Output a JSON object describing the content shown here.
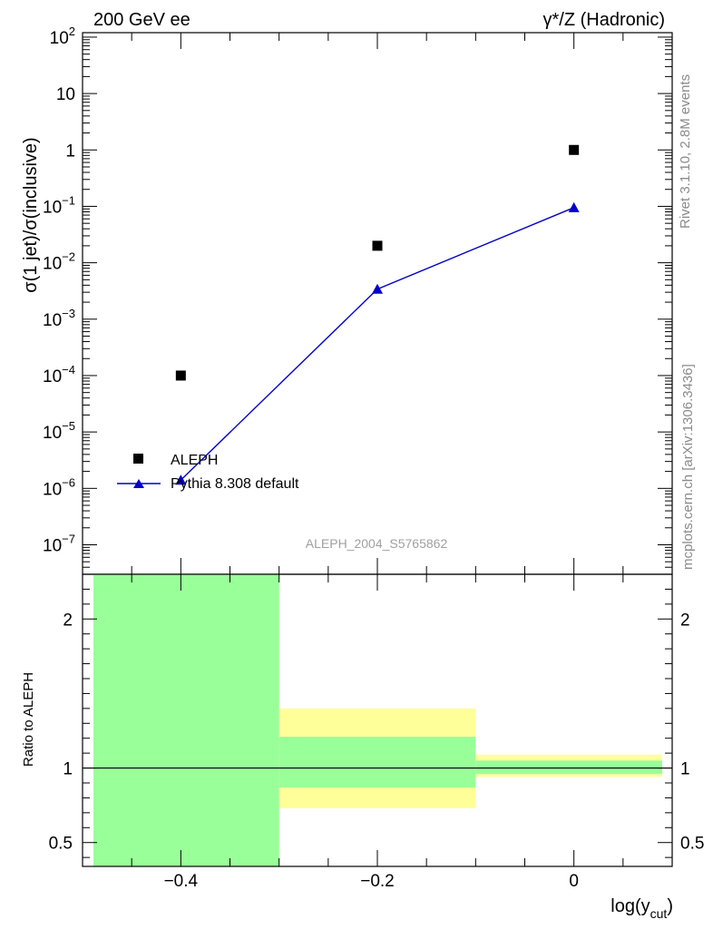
{
  "header": {
    "left": "200 GeV ee",
    "right": "γ*/Z (Hadronic)"
  },
  "side_text": {
    "rivet": "Rivet 3.1.10,  2.8M events",
    "mcplots": "mcplots.cern.ch [arXiv:1306.3436]"
  },
  "watermark": "ALEPH_2004_S5765862",
  "colors": {
    "data": "#000000",
    "mc": "#0000cc",
    "band_green": "#99ff99",
    "band_yellow": "#ffff99"
  },
  "chart_data": [
    {
      "type": "scatter",
      "panel": "main",
      "ylabel": "σ(1 jet)/σ(inclusive)",
      "yscale": "log",
      "ylim": [
        3e-08,
        120
      ],
      "xlim": [
        -0.5,
        0.1
      ],
      "y_ticks": [
        {
          "value": 100,
          "base": "10",
          "exp": "2"
        },
        {
          "value": 10,
          "base": "10",
          "exp": ""
        },
        {
          "value": 1,
          "base": "1",
          "exp": ""
        },
        {
          "value": 0.1,
          "base": "10",
          "exp": "−1"
        },
        {
          "value": 0.01,
          "base": "10",
          "exp": "−2"
        },
        {
          "value": 0.001,
          "base": "10",
          "exp": "−3"
        },
        {
          "value": 0.0001,
          "base": "10",
          "exp": "−4"
        },
        {
          "value": 1e-05,
          "base": "10",
          "exp": "−5"
        },
        {
          "value": 1e-06,
          "base": "10",
          "exp": "−6"
        },
        {
          "value": 1e-07,
          "base": "10",
          "exp": "−7"
        }
      ],
      "legend_position": "bottom-left",
      "series": [
        {
          "name": "ALEPH",
          "marker": "square",
          "x": [
            -0.4,
            -0.2,
            0.0
          ],
          "y": [
            0.0001,
            0.02,
            1.0
          ]
        },
        {
          "name": "Pythia 8.308 default",
          "marker": "triangle",
          "line": true,
          "x": [
            -0.4,
            -0.2,
            0.0
          ],
          "y": [
            1.4e-06,
            0.0034,
            0.095
          ]
        }
      ]
    },
    {
      "type": "area",
      "panel": "ratio",
      "ylabel": "Ratio to ALEPH",
      "xlabel_base": "log(y",
      "xlabel_sub": "cut",
      "xlabel_end": ")",
      "ylim": [
        0.34,
        2.3
      ],
      "xlim": [
        -0.5,
        0.1
      ],
      "x_ticks": [
        {
          "value": -0.4,
          "label": "−0.4"
        },
        {
          "value": -0.2,
          "label": "−0.2"
        },
        {
          "value": 0.0,
          "label": "0"
        }
      ],
      "y_ticks": [
        {
          "value": 0.5,
          "label": "0.5"
        },
        {
          "value": 1,
          "label": "1"
        },
        {
          "value": 2,
          "label": "2"
        }
      ],
      "bins": [
        {
          "x_low": -0.5,
          "x_high": -0.3,
          "yellow": [
            0.34,
            2.3
          ],
          "green": [
            0.34,
            2.3
          ]
        },
        {
          "x_low": -0.3,
          "x_high": -0.1,
          "yellow": [
            0.73,
            1.4
          ],
          "green": [
            0.87,
            1.21
          ]
        },
        {
          "x_low": -0.1,
          "x_high": 0.1,
          "yellow": [
            0.94,
            1.09
          ],
          "green": [
            0.96,
            1.05
          ]
        }
      ],
      "reference_line": 1
    }
  ]
}
